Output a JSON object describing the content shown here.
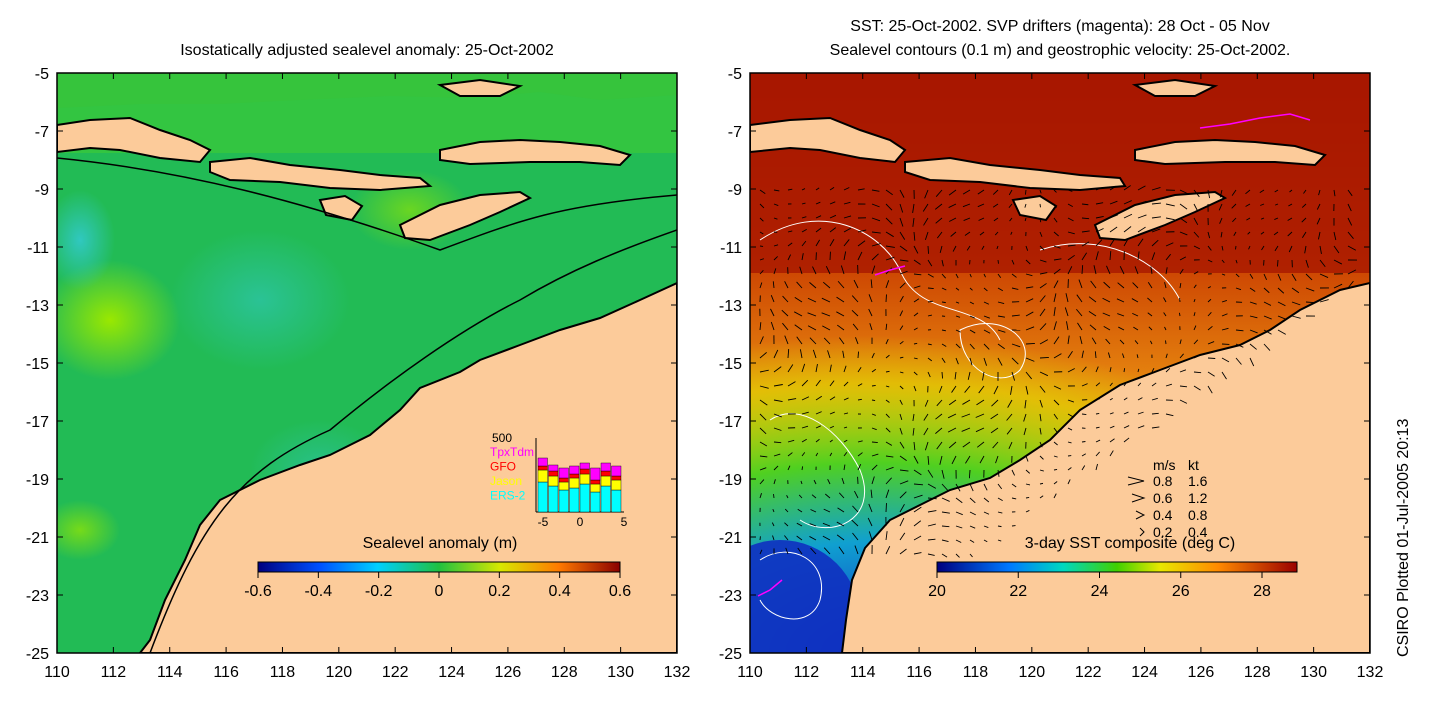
{
  "left_panel": {
    "title": "Isostatically adjusted sealevel anomaly: 25-Oct-2002",
    "colorbar_label": "Sealevel anomaly (m)",
    "colorbar_ticks": [
      "-0.6",
      "-0.4",
      "-0.2",
      "0",
      "0.2",
      "0.4",
      "0.6"
    ],
    "inset": {
      "max_label": "500",
      "legend": [
        {
          "label": "TpxTdm",
          "color": "#ff00ff"
        },
        {
          "label": "GFO",
          "color": "#ff0000"
        },
        {
          "label": "Jason",
          "color": "#ffff00"
        },
        {
          "label": "ERS-2",
          "color": "#00ffff"
        }
      ],
      "x_ticks": [
        "-5",
        "0",
        "5"
      ]
    }
  },
  "right_panel": {
    "title_line1": "SST: 25-Oct-2002. SVP drifters (magenta): 28 Oct - 05 Nov",
    "title_line2": "Sealevel contours (0.1 m) and geostrophic velocity: 25-Oct-2002.",
    "colorbar_label": "3-day SST composite (deg C)",
    "colorbar_ticks": [
      "20",
      "22",
      "24",
      "26",
      "28"
    ],
    "speed_legend": {
      "header_ms": "m/s",
      "header_kt": "kt",
      "rows": [
        {
          "ms": "0.8",
          "kt": "1.6"
        },
        {
          "ms": "0.6",
          "kt": "1.2"
        },
        {
          "ms": "0.4",
          "kt": "0.8"
        },
        {
          "ms": "0.2",
          "kt": "0.4"
        }
      ]
    }
  },
  "y_ticks": [
    "-5",
    "-7",
    "-9",
    "-11",
    "-13",
    "-15",
    "-17",
    "-19",
    "-21",
    "-23",
    "-25"
  ],
  "x_ticks": [
    "110",
    "112",
    "114",
    "116",
    "118",
    "120",
    "122",
    "124",
    "126",
    "128",
    "130",
    "132"
  ],
  "side_label": "CSIRO Plotted 01-Jul-2005 20:13",
  "colors": {
    "land": "#fccb9a",
    "ocean_green": "#22bb55",
    "sst_warm": "#c21a00",
    "sst_mid": "#e98a10",
    "sst_cool": "#1a50d8",
    "drifter": "#ff00ff"
  }
}
